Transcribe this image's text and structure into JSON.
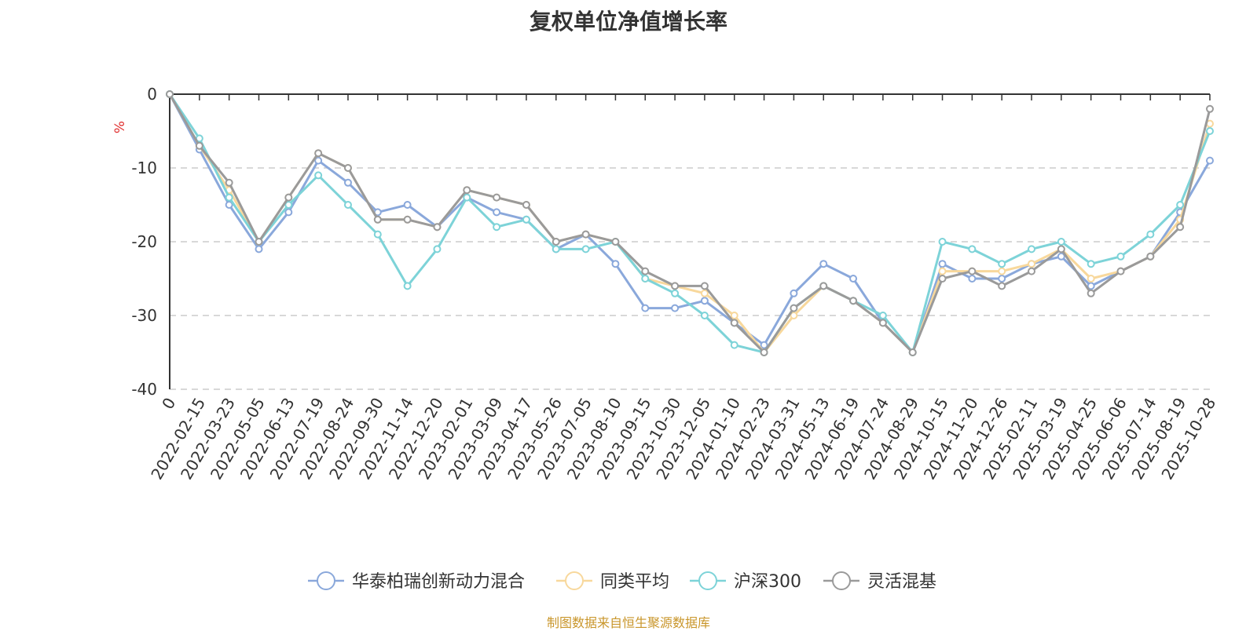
{
  "chart_data": {
    "type": "line",
    "title": "复权单位净值增长率",
    "ylabel": "%",
    "ylim": [
      -40,
      0
    ],
    "yticks": [
      0,
      -10,
      -20,
      -30,
      -40
    ],
    "grid": "horizontal dashed",
    "legend_position": "bottom",
    "source": "制图数据来自恒生聚源数据库",
    "x_labels": [
      "0",
      "2022-02-15",
      "2022-03-23",
      "2022-05-05",
      "2022-06-13",
      "2022-07-19",
      "2022-08-24",
      "2022-09-30",
      "2022-11-14",
      "2022-12-20",
      "2023-02-01",
      "2023-03-09",
      "2023-04-17",
      "2023-05-26",
      "2023-07-05",
      "2023-08-10",
      "2023-09-15",
      "2023-10-30",
      "2023-12-05",
      "2024-01-10",
      "2024-02-23",
      "2024-03-31",
      "2024-05-13",
      "2024-06-19",
      "2024-07-24",
      "2024-08-29",
      "2024-10-15",
      "2024-11-20",
      "2024-12-26",
      "2025-02-11",
      "2025-03-19",
      "2025-04-25",
      "2025-06-06",
      "2025-07-14",
      "2025-08-19",
      "2025-10-28"
    ],
    "series": [
      {
        "name": "华泰柏瑞创新动力混合",
        "color": "#8aa8db",
        "values": [
          0,
          -7.5,
          -15,
          -21,
          -16,
          -9,
          -12,
          -16,
          -15,
          -18,
          -14,
          -16,
          -17,
          -21,
          -19,
          -23,
          -29,
          -29,
          -28,
          -31,
          -34,
          -27,
          -23,
          -25,
          -31,
          -35,
          -23,
          -25,
          -25,
          -23,
          -22,
          -26,
          -24,
          -22,
          -16,
          -9
        ]
      },
      {
        "name": "同类平均",
        "color": "#f8d89c",
        "values": [
          0,
          -7,
          -13,
          -20,
          -14,
          -8,
          -10,
          -17,
          -17,
          -18,
          -13,
          -14,
          -15,
          -20,
          -19,
          -20,
          -25,
          -26,
          -27,
          -30,
          -35,
          -30,
          -26,
          -28,
          -31,
          -35,
          -24,
          -24,
          -24,
          -23,
          -21,
          -25,
          -24,
          -22,
          -17,
          -4
        ]
      },
      {
        "name": "沪深300",
        "color": "#7dd3d8",
        "values": [
          0,
          -6,
          -14,
          -20,
          -15,
          -11,
          -15,
          -19,
          -26,
          -21,
          -14,
          -18,
          -17,
          -21,
          -21,
          -20,
          -25,
          -27,
          -30,
          -34,
          -35,
          -29,
          -26,
          -28,
          -30,
          -35,
          -20,
          -21,
          -23,
          -21,
          -20,
          -23,
          -22,
          -19,
          -15,
          -5
        ]
      },
      {
        "name": "灵活混基",
        "color": "#9a9a9a",
        "values": [
          0,
          -7,
          -12,
          -20,
          -14,
          -8,
          -10,
          -17,
          -17,
          -18,
          -13,
          -14,
          -15,
          -20,
          -19,
          -20,
          -24,
          -26,
          -26,
          -31,
          -35,
          -29,
          -26,
          -28,
          -31,
          -35,
          -25,
          -24,
          -26,
          -24,
          -21,
          -27,
          -24,
          -22,
          -18,
          -2
        ]
      }
    ]
  }
}
